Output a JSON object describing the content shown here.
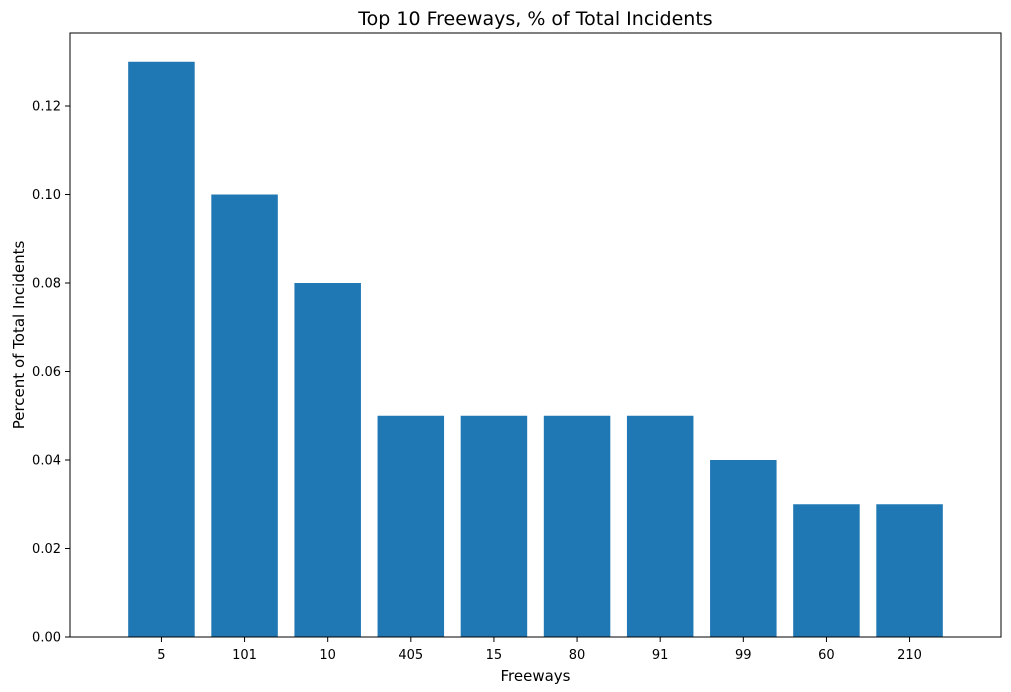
{
  "chart_data": {
    "type": "bar",
    "title": "Top 10 Freeways, % of Total Incidents",
    "xlabel": "Freeways",
    "ylabel": "Percent of Total Incidents",
    "categories": [
      "5",
      "101",
      "10",
      "405",
      "15",
      "80",
      "91",
      "99",
      "60",
      "210"
    ],
    "values": [
      0.13,
      0.1,
      0.08,
      0.05,
      0.05,
      0.05,
      0.05,
      0.04,
      0.03,
      0.03
    ],
    "ylim": [
      0,
      0.1365
    ],
    "yticks": [
      "0.00",
      "0.02",
      "0.04",
      "0.06",
      "0.08",
      "0.10",
      "0.12"
    ],
    "bar_color": "#1f77b4",
    "grid": false,
    "legend": "none"
  }
}
